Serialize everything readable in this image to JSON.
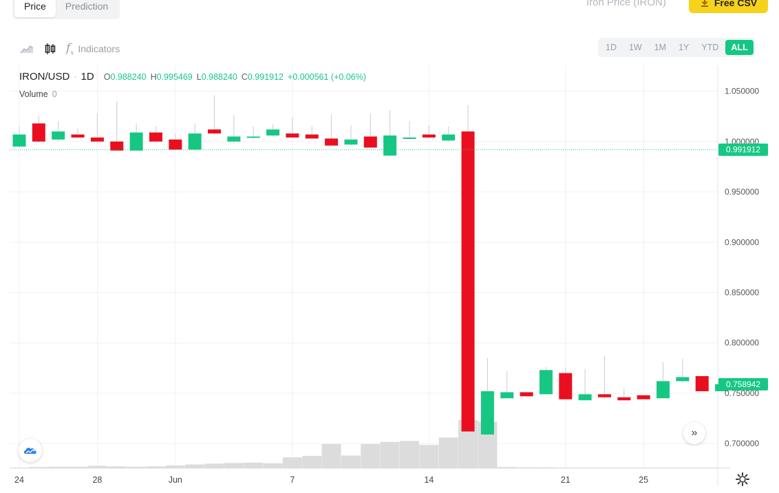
{
  "tabs": [
    {
      "label": "Price",
      "active": true
    },
    {
      "label": "Prediction",
      "active": false
    }
  ],
  "header": {
    "title": "Iron Price (IRON)",
    "csv_label": "Free CSV"
  },
  "toolbar": {
    "indicators_label": "Indicators"
  },
  "ranges": [
    {
      "label": "1D"
    },
    {
      "label": "1W"
    },
    {
      "label": "1M"
    },
    {
      "label": "1Y"
    },
    {
      "label": "YTD"
    },
    {
      "label": "ALL",
      "active": true
    }
  ],
  "legend": {
    "symbol": "IRON/USD",
    "timeframe": "1D",
    "o_label": "O",
    "o": "0.988240",
    "h_label": "H",
    "h": "0.995469",
    "l_label": "L",
    "l": "0.988240",
    "c_label": "C",
    "c": "0.991912",
    "change": "+0.000561 (+0.06%)",
    "volume_label": "Volume",
    "volume_value": "0"
  },
  "colors": {
    "up": "#16c784",
    "down": "#ea0f1f",
    "volume": "#dcdcdc",
    "grid": "#f0f0f0"
  },
  "chart_data": {
    "type": "candlestick",
    "y_ticks": [
      "1.050000",
      "1.000000",
      "0.950000",
      "0.900000",
      "0.850000",
      "0.800000",
      "0.750000",
      "0.700000"
    ],
    "ylim": [
      0.6755,
      1.0757
    ],
    "x_ticks": [
      {
        "label": "24",
        "index": 0
      },
      {
        "label": "28",
        "index": 4
      },
      {
        "label": "Jun",
        "index": 8
      },
      {
        "label": "7",
        "index": 14
      },
      {
        "label": "14",
        "index": 21
      },
      {
        "label": "21",
        "index": 28
      },
      {
        "label": "25",
        "index": 32
      }
    ],
    "price_labels": [
      {
        "text": "0.991912",
        "value": 0.991912,
        "color": "#16c784"
      },
      {
        "text": "0.758942",
        "value": 0.758942,
        "color": "#16c784"
      }
    ],
    "guide_line": 0.991912,
    "candles": [
      {
        "o": 0.995,
        "h": 1.015,
        "l": 0.994,
        "c": 1.007,
        "v": 0.02
      },
      {
        "o": 1.018,
        "h": 1.025,
        "l": 0.999,
        "c": 1.0,
        "v": 0.04
      },
      {
        "o": 1.002,
        "h": 1.02,
        "l": 1.0,
        "c": 1.01,
        "v": 0.05
      },
      {
        "o": 1.007,
        "h": 1.013,
        "l": 1.003,
        "c": 1.004,
        "v": 0.05
      },
      {
        "o": 1.004,
        "h": 1.028,
        "l": 0.998,
        "c": 1.0,
        "v": 0.08
      },
      {
        "o": 1.0,
        "h": 1.04,
        "l": 0.991,
        "c": 0.991,
        "v": 0.06
      },
      {
        "o": 0.991,
        "h": 1.018,
        "l": 0.991,
        "c": 1.009,
        "v": 0.05
      },
      {
        "o": 1.009,
        "h": 1.015,
        "l": 0.999,
        "c": 1.0,
        "v": 0.06
      },
      {
        "o": 1.002,
        "h": 1.008,
        "l": 0.992,
        "c": 0.992,
        "v": 0.09
      },
      {
        "o": 0.992,
        "h": 1.018,
        "l": 0.991,
        "c": 1.008,
        "v": 0.12
      },
      {
        "o": 1.012,
        "h": 1.046,
        "l": 1.007,
        "c": 1.008,
        "v": 0.15
      },
      {
        "o": 1.0,
        "h": 1.026,
        "l": 0.998,
        "c": 1.005,
        "v": 0.17
      },
      {
        "o": 1.005,
        "h": 1.015,
        "l": 1.003,
        "c": 1.005,
        "v": 0.18
      },
      {
        "o": 1.006,
        "h": 1.017,
        "l": 1.005,
        "c": 1.012,
        "v": 0.16
      },
      {
        "o": 1.008,
        "h": 1.024,
        "l": 1.003,
        "c": 1.004,
        "v": 0.35
      },
      {
        "o": 1.007,
        "h": 1.015,
        "l": 1.003,
        "c": 1.003,
        "v": 0.4
      },
      {
        "o": 1.003,
        "h": 1.027,
        "l": 0.996,
        "c": 0.996,
        "v": 0.78
      },
      {
        "o": 0.997,
        "h": 1.016,
        "l": 0.996,
        "c": 1.002,
        "v": 0.41
      },
      {
        "o": 1.005,
        "h": 1.028,
        "l": 0.997,
        "c": 0.994,
        "v": 0.78
      },
      {
        "o": 0.986,
        "h": 1.031,
        "l": 0.986,
        "c": 1.006,
        "v": 0.85
      },
      {
        "o": 1.003,
        "h": 1.02,
        "l": 1.002,
        "c": 1.004,
        "v": 0.88
      },
      {
        "o": 1.007,
        "h": 1.016,
        "l": 1.003,
        "c": 1.004,
        "v": 0.75
      },
      {
        "o": 1.001,
        "h": 1.015,
        "l": 1.0,
        "c": 1.007,
        "v": 0.99
      },
      {
        "o": 1.01,
        "h": 1.036,
        "l": 0.713,
        "c": 0.712,
        "v": 1.55
      },
      {
        "o": 0.709,
        "h": 0.785,
        "l": 0.709,
        "c": 0.752,
        "v": 1.5
      },
      {
        "o": 0.745,
        "h": 0.772,
        "l": 0.745,
        "c": 0.751,
        "v": 0.04
      },
      {
        "o": 0.751,
        "h": 0.751,
        "l": 0.746,
        "c": 0.747,
        "v": 0.03
      },
      {
        "o": 0.749,
        "h": 0.776,
        "l": 0.749,
        "c": 0.773,
        "v": 0.03
      },
      {
        "o": 0.77,
        "h": 0.775,
        "l": 0.744,
        "c": 0.744,
        "v": 0.02
      },
      {
        "o": 0.743,
        "h": 0.774,
        "l": 0.743,
        "c": 0.749,
        "v": 0.02
      },
      {
        "o": 0.749,
        "h": 0.787,
        "l": 0.745,
        "c": 0.746,
        "v": 0.02
      },
      {
        "o": 0.746,
        "h": 0.755,
        "l": 0.744,
        "c": 0.743,
        "v": 0.02
      },
      {
        "o": 0.748,
        "h": 0.748,
        "l": 0.744,
        "c": 0.744,
        "v": 0.02
      },
      {
        "o": 0.745,
        "h": 0.781,
        "l": 0.745,
        "c": 0.762,
        "v": 0.02
      },
      {
        "o": 0.762,
        "h": 0.784,
        "l": 0.76,
        "c": 0.766,
        "v": 0.02
      },
      {
        "o": 0.767,
        "h": 0.767,
        "l": 0.752,
        "c": 0.752,
        "v": 0.02
      },
      {
        "o": 0.752,
        "h": 0.76,
        "l": 0.752,
        "c": 0.759,
        "v": 0.02
      }
    ]
  }
}
